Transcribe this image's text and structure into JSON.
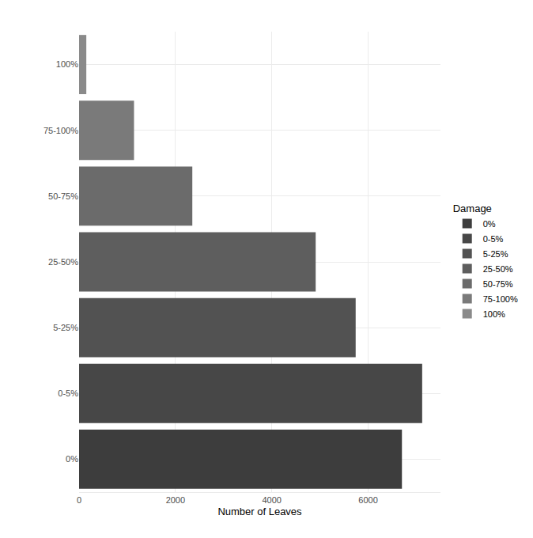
{
  "chart_data": {
    "type": "bar",
    "orientation": "horizontal",
    "x_label": "Number of Leaves",
    "legend_title": "Damage",
    "legend": "right",
    "categories": [
      "0%",
      "0-5%",
      "5-25%",
      "25-50%",
      "50-75%",
      "75-100%",
      "100%"
    ],
    "values": [
      6700,
      7120,
      5740,
      4910,
      2350,
      1140,
      150
    ],
    "colors": [
      "#3d3d3d",
      "#474747",
      "#525252",
      "#5e5e5e",
      "#6b6b6b",
      "#7a7a7a",
      "#8a8a8a"
    ],
    "xlim": [
      0,
      7500
    ],
    "xticks": [
      0,
      2000,
      4000,
      6000
    ],
    "grid": true
  }
}
